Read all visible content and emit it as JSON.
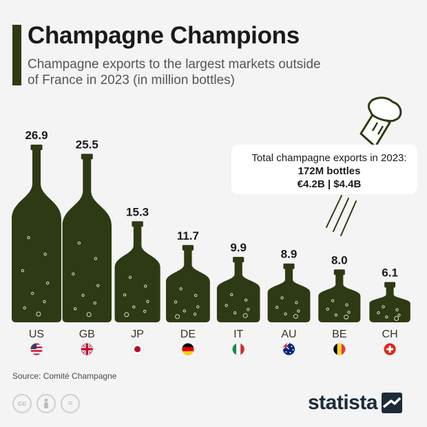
{
  "header": {
    "title": "Champagne Champions",
    "subtitle": "Champagne exports to the largest markets outside of France in 2023 (in million bottles)"
  },
  "callout": {
    "line1": "Total champagne exports in 2023:",
    "line2": "172M bottles",
    "line3": "€4.2B | $4.4B"
  },
  "source": "Source: Comité Champagne",
  "brand": {
    "name": "statista"
  },
  "license_icons": [
    "cc-icon",
    "person-icon",
    "equals-icon"
  ],
  "colors": {
    "bottle": "#2d3a14",
    "bubble": "#d8dcc8",
    "text": "#1a1a1a",
    "accent": "#1c2b3a"
  },
  "chart_data": {
    "type": "bar",
    "title": "Champagne Champions",
    "subtitle": "Champagne exports to the largest markets outside of France in 2023 (in million bottles)",
    "categories": [
      "US",
      "GB",
      "JP",
      "DE",
      "IT",
      "AU",
      "BE",
      "CH"
    ],
    "flags": [
      "us-flag-icon",
      "gb-flag-icon",
      "jp-flag-icon",
      "de-flag-icon",
      "it-flag-icon",
      "au-flag-icon",
      "be-flag-icon",
      "ch-flag-icon"
    ],
    "values": [
      26.9,
      25.5,
      15.3,
      11.7,
      9.9,
      8.9,
      8.0,
      6.1
    ],
    "value_labels": [
      "26.9",
      "25.5",
      "15.3",
      "11.7",
      "9.9",
      "8.9",
      "8.0",
      "6.1"
    ],
    "unit": "million bottles",
    "ylim": [
      0,
      26.9
    ]
  }
}
